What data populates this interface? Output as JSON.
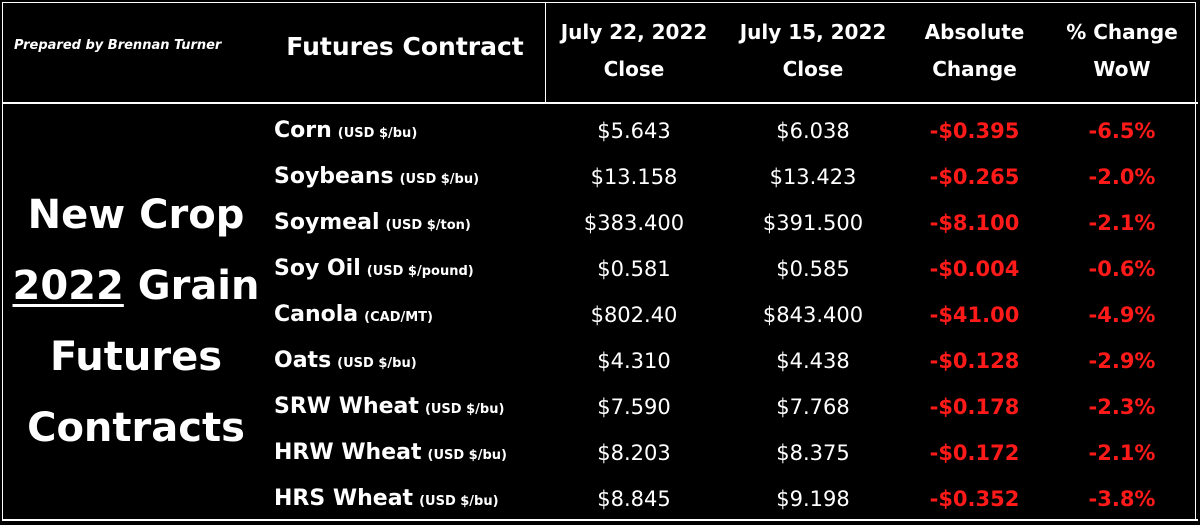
{
  "prepared_by": "Prepared by Brennan Turner",
  "headers": {
    "contract": "Futures Contract",
    "col1": [
      "July 22, 2022",
      "Close"
    ],
    "col2": [
      "July 15, 2022",
      "Close"
    ],
    "col3": [
      "Absolute",
      "Change"
    ],
    "col4": [
      "% Change",
      "WoW"
    ]
  },
  "side_title": {
    "line1": "New Crop",
    "year": "2022",
    "line2_rest": " Grain",
    "line3": "Futures",
    "line4": "Contracts"
  },
  "colors": {
    "background": "#000000",
    "text": "#ffffff",
    "negative": "#ff1a1a"
  },
  "rows": [
    {
      "name": "Corn",
      "unit": "(USD $/bu)",
      "jul22": "$5.643",
      "jul15": "$6.038",
      "abs": "-$0.395",
      "pct": "-6.5%"
    },
    {
      "name": "Soybeans",
      "unit": "(USD $/bu)",
      "jul22": "$13.158",
      "jul15": "$13.423",
      "abs": "-$0.265",
      "pct": "-2.0%"
    },
    {
      "name": "Soymeal",
      "unit": "(USD $/ton)",
      "jul22": "$383.400",
      "jul15": "$391.500",
      "abs": "-$8.100",
      "pct": "-2.1%"
    },
    {
      "name": "Soy Oil",
      "unit": "(USD $/pound)",
      "jul22": "$0.581",
      "jul15": "$0.585",
      "abs": "-$0.004",
      "pct": "-0.6%"
    },
    {
      "name": "Canola",
      "unit": "(CAD/MT)",
      "jul22": "$802.40",
      "jul15": "$843.400",
      "abs": "-$41.00",
      "pct": "-4.9%"
    },
    {
      "name": "Oats",
      "unit": "(USD $/bu)",
      "jul22": "$4.310",
      "jul15": "$4.438",
      "abs": "-$0.128",
      "pct": "-2.9%"
    },
    {
      "name": "SRW Wheat",
      "unit": "(USD $/bu)",
      "jul22": "$7.590",
      "jul15": "$7.768",
      "abs": "-$0.178",
      "pct": "-2.3%"
    },
    {
      "name": "HRW Wheat",
      "unit": "(USD $/bu)",
      "jul22": "$8.203",
      "jul15": "$8.375",
      "abs": "-$0.172",
      "pct": "-2.1%"
    },
    {
      "name": "HRS Wheat",
      "unit": "(USD $/bu)",
      "jul22": "$8.845",
      "jul15": "$9.198",
      "abs": "-$0.352",
      "pct": "-3.8%"
    }
  ]
}
